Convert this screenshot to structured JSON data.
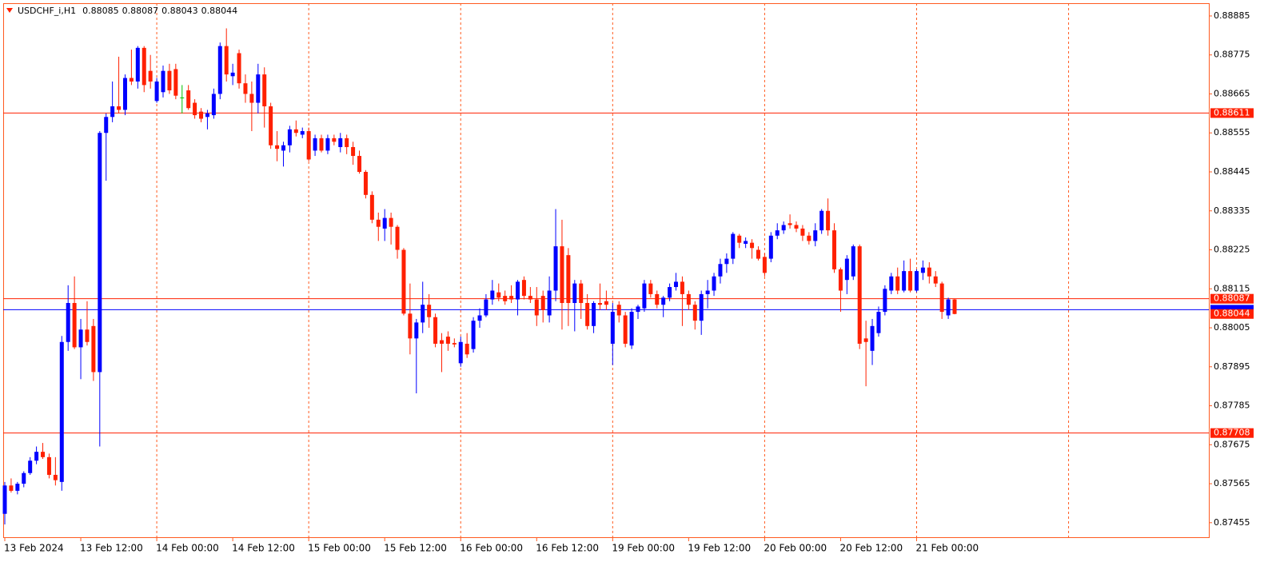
{
  "chart_data": {
    "type": "candlestick",
    "symbol": "USDCHF_i,H1",
    "up_color": "#0000ff",
    "down_color": "#ff2000",
    "doji_color": "#00c000",
    "ylim": [
      0.87414,
      0.88921
    ],
    "yticks": [
      0.88885,
      0.88775,
      0.88665,
      0.88555,
      0.88445,
      0.88335,
      0.88225,
      0.88115,
      0.88005,
      0.87895,
      0.87785,
      0.87675,
      0.87565,
      0.87455
    ],
    "hlines": [
      {
        "value": 0.88611,
        "color": "#ff2000"
      },
      {
        "value": 0.88087,
        "color": "#ff2000"
      },
      {
        "value": 0.87708,
        "color": "#ff2000"
      },
      {
        "value": 0.88056,
        "color": "#0000ff"
      }
    ],
    "categories": [
      "13 Feb 2024",
      null,
      null,
      null,
      null,
      null,
      null,
      null,
      null,
      null,
      null,
      null,
      "13 Feb 12:00",
      null,
      null,
      null,
      null,
      null,
      null,
      null,
      null,
      null,
      null,
      null,
      "14 Feb 00:00",
      null,
      null,
      null,
      null,
      null,
      null,
      null,
      null,
      null,
      null,
      null,
      "14 Feb 12:00",
      null,
      null,
      null,
      null,
      null,
      null,
      null,
      null,
      null,
      null,
      null,
      "15 Feb 00:00",
      null,
      null,
      null,
      null,
      null,
      null,
      null,
      null,
      null,
      null,
      null,
      "15 Feb 12:00",
      null,
      null,
      null,
      null,
      null,
      null,
      null,
      null,
      null,
      null,
      null,
      "16 Feb 00:00",
      null,
      null,
      null,
      null,
      null,
      null,
      null,
      null,
      null,
      null,
      null,
      "16 Feb 12:00",
      null,
      null,
      null,
      null,
      null,
      null,
      null,
      null,
      null,
      null,
      null,
      "19 Feb 00:00",
      null,
      null,
      null,
      null,
      null,
      null,
      null,
      null,
      null,
      null,
      null,
      "19 Feb 12:00",
      null,
      null,
      null,
      null,
      null,
      null,
      null,
      null,
      null,
      null,
      null,
      "20 Feb 00:00",
      null,
      null,
      null,
      null,
      null,
      null,
      null,
      null,
      null,
      null,
      null,
      "20 Feb 12:00",
      null,
      null,
      null,
      null,
      null,
      null,
      null,
      null,
      null,
      null,
      null,
      "21 Feb 00:00",
      null,
      null,
      null,
      null,
      null,
      null
    ],
    "open": [
      0.8748,
      0.8756,
      0.87545,
      0.87565,
      0.87595,
      0.8763,
      0.87655,
      0.8764,
      0.8759,
      0.8757,
      0.87965,
      0.88075,
      0.8795,
      0.88,
      0.8801,
      0.8788,
      0.88555,
      0.886,
      0.8863,
      0.8862,
      0.8871,
      0.887,
      0.88795,
      0.8873,
      0.88645,
      0.8867,
      0.8873,
      0.88735,
      0.88655,
      0.88675,
      0.8864,
      0.88615,
      0.886,
      0.88605,
      0.88665,
      0.888,
      0.88715,
      0.8878,
      0.88695,
      0.88665,
      0.8864,
      0.8872,
      0.8863,
      0.8852,
      0.88505,
      0.8852,
      0.88565,
      0.8855,
      0.8856,
      0.88505,
      0.8854,
      0.88505,
      0.8854,
      0.88515,
      0.8854,
      0.88515,
      0.8849,
      0.88445,
      0.8838,
      0.8831,
      0.88285,
      0.88315,
      0.8829,
      0.88225,
      0.88045,
      0.87975,
      0.8802,
      0.8807,
      0.88035,
      0.8797,
      0.8798,
      0.87962,
      0.87905,
      0.8796,
      0.87945,
      0.88025,
      0.8804,
      0.88085,
      0.88105,
      0.88095,
      0.88095,
      0.88085,
      0.8814,
      0.88095,
      0.88085,
      0.88095,
      0.8804,
      0.8811,
      0.88235,
      0.8821,
      0.88075,
      0.8813,
      0.88075,
      0.8801,
      0.88075,
      0.8808,
      0.8796,
      0.8807,
      0.8804,
      0.87955,
      0.8805,
      0.8806,
      0.8813,
      0.881,
      0.8807,
      0.8809,
      0.8812,
      0.88135,
      0.881,
      0.8807,
      0.88025,
      0.881,
      0.8811,
      0.8815,
      0.88185,
      0.882,
      0.88265,
      0.88242,
      0.88245,
      0.88225,
      0.88205,
      0.882,
      0.88265,
      0.8828,
      0.883,
      0.88295,
      0.88285,
      0.88265,
      0.8825,
      0.8828,
      0.88335,
      0.8828,
      0.8817,
      0.8814,
      0.8815,
      0.88235,
      0.87975,
      0.8794,
      0.8799,
      0.8805,
      0.8811,
      0.8815,
      0.8811,
      0.88165,
      0.8811,
      0.8816,
      0.88175,
      0.8815,
      0.8813,
      0.8804,
      0.88085
    ],
    "high": [
      0.8757,
      0.8758,
      0.8757,
      0.876,
      0.8764,
      0.8767,
      0.8768,
      0.8765,
      0.8764,
      0.87982,
      0.88125,
      0.8815,
      0.8803,
      0.8808,
      0.8803,
      0.8856,
      0.8861,
      0.887,
      0.8877,
      0.8872,
      0.8879,
      0.888,
      0.888,
      0.88775,
      0.8871,
      0.88745,
      0.8875,
      0.8875,
      0.8869,
      0.8869,
      0.8865,
      0.88625,
      0.8862,
      0.8868,
      0.8881,
      0.8885,
      0.8875,
      0.8879,
      0.8872,
      0.887,
      0.8875,
      0.8874,
      0.8864,
      0.8856,
      0.8853,
      0.88575,
      0.8859,
      0.8857,
      0.8857,
      0.8855,
      0.8855,
      0.8855,
      0.8855,
      0.88555,
      0.8855,
      0.8853,
      0.88505,
      0.8845,
      0.8839,
      0.8833,
      0.8834,
      0.8833,
      0.88295,
      0.8823,
      0.8813,
      0.8803,
      0.88135,
      0.881,
      0.88045,
      0.8799,
      0.87995,
      0.87975,
      0.8798,
      0.8799,
      0.88035,
      0.8806,
      0.881,
      0.8814,
      0.8813,
      0.8811,
      0.88125,
      0.8814,
      0.8815,
      0.8812,
      0.8812,
      0.8811,
      0.8815,
      0.8834,
      0.8831,
      0.8823,
      0.8814,
      0.8814,
      0.881,
      0.8808,
      0.8813,
      0.8811,
      0.88075,
      0.8808,
      0.8805,
      0.8806,
      0.8807,
      0.8814,
      0.8814,
      0.8811,
      0.88095,
      0.8813,
      0.8816,
      0.8815,
      0.8811,
      0.8808,
      0.8811,
      0.8814,
      0.8816,
      0.882,
      0.88215,
      0.88275,
      0.8827,
      0.8826,
      0.88255,
      0.88235,
      0.88215,
      0.88275,
      0.883,
      0.88305,
      0.88325,
      0.88305,
      0.88295,
      0.88275,
      0.883,
      0.8834,
      0.8837,
      0.883,
      0.88175,
      0.8821,
      0.8824,
      0.8824,
      0.88025,
      0.8803,
      0.88065,
      0.88125,
      0.8816,
      0.88175,
      0.88195,
      0.882,
      0.8817,
      0.88195,
      0.8819,
      0.88165,
      0.88135,
      0.8809,
      0.88087
    ],
    "low": [
      0.8745,
      0.8754,
      0.87535,
      0.87555,
      0.8759,
      0.8762,
      0.87635,
      0.8758,
      0.8756,
      0.87545,
      0.8794,
      0.87945,
      0.8786,
      0.87955,
      0.87855,
      0.8767,
      0.8842,
      0.88585,
      0.8861,
      0.88605,
      0.8869,
      0.8868,
      0.8867,
      0.8868,
      0.8864,
      0.88655,
      0.88665,
      0.8865,
      0.8861,
      0.8862,
      0.88595,
      0.88585,
      0.88565,
      0.88595,
      0.8865,
      0.887,
      0.8869,
      0.8868,
      0.8864,
      0.8856,
      0.8861,
      0.8857,
      0.8851,
      0.88475,
      0.8846,
      0.885,
      0.88545,
      0.8854,
      0.88475,
      0.8849,
      0.885,
      0.88495,
      0.8852,
      0.885,
      0.88495,
      0.88465,
      0.8844,
      0.8837,
      0.883,
      0.8825,
      0.8825,
      0.8824,
      0.882,
      0.8804,
      0.8793,
      0.8782,
      0.8799,
      0.88005,
      0.8795,
      0.8788,
      0.8794,
      0.8795,
      0.87895,
      0.8792,
      0.87935,
      0.88005,
      0.88035,
      0.8807,
      0.8808,
      0.8807,
      0.88075,
      0.8804,
      0.88085,
      0.88075,
      0.8801,
      0.8802,
      0.8802,
      0.8808,
      0.88,
      0.8801,
      0.87995,
      0.8803,
      0.88,
      0.8799,
      0.88055,
      0.88055,
      0.879,
      0.8802,
      0.8795,
      0.87945,
      0.8803,
      0.8805,
      0.8809,
      0.8806,
      0.88035,
      0.8808,
      0.8811,
      0.8801,
      0.88055,
      0.88,
      0.87985,
      0.8806,
      0.88095,
      0.8813,
      0.8816,
      0.88185,
      0.8823,
      0.8823,
      0.882,
      0.88195,
      0.8815,
      0.8819,
      0.88255,
      0.8827,
      0.88285,
      0.88275,
      0.8825,
      0.8824,
      0.88235,
      0.8827,
      0.88265,
      0.8816,
      0.8805,
      0.881,
      0.8814,
      0.87945,
      0.8784,
      0.879,
      0.8798,
      0.8804,
      0.881,
      0.881,
      0.88105,
      0.88105,
      0.88105,
      0.8814,
      0.8813,
      0.8812,
      0.8803,
      0.8803,
      0.88043
    ],
    "close": [
      0.8756,
      0.87545,
      0.87565,
      0.87595,
      0.8763,
      0.87655,
      0.8764,
      0.8759,
      0.87575,
      0.87965,
      0.88075,
      0.8795,
      0.88,
      0.87965,
      0.8788,
      0.88555,
      0.886,
      0.8863,
      0.8862,
      0.8871,
      0.887,
      0.88795,
      0.8869,
      0.887,
      0.887,
      0.8873,
      0.88675,
      0.8866,
      0.88655,
      0.88625,
      0.88605,
      0.88595,
      0.8861,
      0.88665,
      0.888,
      0.8872,
      0.88725,
      0.88695,
      0.88665,
      0.8864,
      0.8872,
      0.8863,
      0.8852,
      0.8851,
      0.8852,
      0.88565,
      0.88555,
      0.8856,
      0.8848,
      0.8854,
      0.88505,
      0.8854,
      0.8853,
      0.8854,
      0.88515,
      0.8849,
      0.88445,
      0.8838,
      0.8831,
      0.8829,
      0.88315,
      0.8829,
      0.88225,
      0.88045,
      0.87975,
      0.8802,
      0.8807,
      0.88035,
      0.8796,
      0.8796,
      0.8796,
      0.87958,
      0.87965,
      0.8793,
      0.88025,
      0.8804,
      0.88085,
      0.8811,
      0.8809,
      0.8808,
      0.88085,
      0.88135,
      0.88095,
      0.88085,
      0.8804,
      0.88055,
      0.8811,
      0.88235,
      0.88075,
      0.88075,
      0.8813,
      0.88075,
      0.8801,
      0.88075,
      0.8807,
      0.8807,
      0.8805,
      0.8804,
      0.8796,
      0.8805,
      0.88065,
      0.8813,
      0.881,
      0.8807,
      0.8809,
      0.8812,
      0.88135,
      0.881,
      0.8807,
      0.88025,
      0.881,
      0.8811,
      0.8815,
      0.88185,
      0.882,
      0.8827,
      0.88245,
      0.8825,
      0.8823,
      0.882,
      0.8816,
      0.88265,
      0.8828,
      0.88295,
      0.88295,
      0.88285,
      0.88265,
      0.8825,
      0.8828,
      0.88335,
      0.8828,
      0.8817,
      0.8811,
      0.882,
      0.88235,
      0.8796,
      0.87965,
      0.8801,
      0.8805,
      0.88115,
      0.8815,
      0.8811,
      0.88165,
      0.8811,
      0.88165,
      0.88175,
      0.8815,
      0.8813,
      0.8805,
      0.88085,
      0.88044
    ]
  }
}
